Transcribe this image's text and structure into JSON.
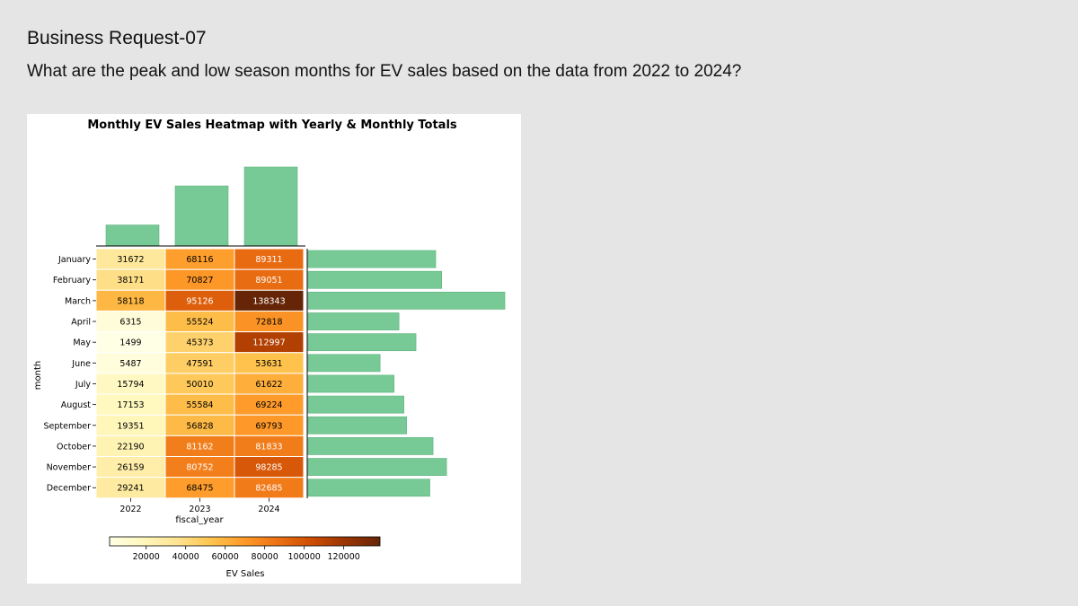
{
  "slide": {
    "title": "Business Request-07",
    "question": "What are the peak and low season months for EV sales based on the data from 2022 to 2024?"
  },
  "chart_data": {
    "type": "heatmap",
    "title": "Monthly EV Sales Heatmap with Yearly & Monthly Totals",
    "xlabel": "fiscal_year",
    "ylabel": "month",
    "colorbar_label": "EV Sales",
    "x": [
      "2022",
      "2023",
      "2024"
    ],
    "y": [
      "January",
      "February",
      "March",
      "April",
      "May",
      "June",
      "July",
      "August",
      "September",
      "October",
      "November",
      "December"
    ],
    "values": [
      [
        31672,
        68116,
        89311
      ],
      [
        38171,
        70827,
        89051
      ],
      [
        58118,
        95126,
        138343
      ],
      [
        6315,
        55524,
        72818
      ],
      [
        1499,
        45373,
        112997
      ],
      [
        5487,
        47591,
        53631
      ],
      [
        15794,
        50010,
        61622
      ],
      [
        17153,
        55584,
        69224
      ],
      [
        19351,
        56828,
        69793
      ],
      [
        22190,
        81162,
        81833
      ],
      [
        26159,
        80752,
        98285
      ],
      [
        29241,
        68475,
        82685
      ]
    ],
    "colorbar_ticks": [
      20000,
      40000,
      60000,
      80000,
      100000,
      120000
    ],
    "color_range": [
      1499,
      138343
    ],
    "colormap": "YlOrBr",
    "marginal_bar_color": "#77c995",
    "marginals": {
      "top": "yearly totals (bars, no axis labels)",
      "right": "monthly totals (bars, no axis labels)"
    },
    "legend": "colorbar bottom"
  }
}
